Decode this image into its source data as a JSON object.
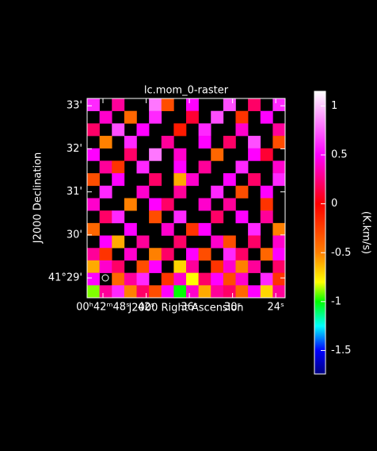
{
  "chart_data": {
    "type": "heatmap",
    "title": "lc.mom_0-raster",
    "xlabel": "J2000 Right Ascension",
    "ylabel": "J2000 Declination",
    "colorbar_label": "(K.km/s)",
    "xlim": [
      50.2,
      22.7
    ],
    "ylim": [
      28.54,
      33.17
    ],
    "clim": [
      -1.74,
      1.15
    ],
    "xticks": [
      {
        "value": 48,
        "label": "00ʰ42ᵐ48ˢ"
      },
      {
        "value": 42,
        "label": "42ˢ"
      },
      {
        "value": 36,
        "label": "36ˢ"
      },
      {
        "value": 30,
        "label": "30ˢ"
      },
      {
        "value": 24,
        "label": "24ˢ"
      }
    ],
    "yticks": [
      {
        "value": 33,
        "label": "33'"
      },
      {
        "value": 32,
        "label": "32'"
      },
      {
        "value": 31,
        "label": "31'"
      },
      {
        "value": 30,
        "label": "30'"
      },
      {
        "value": 29,
        "label": "41°29'"
      }
    ],
    "cticks": [
      {
        "value": 1,
        "label": "1"
      },
      0.5,
      0,
      -0.5,
      -1,
      -1.5
    ],
    "colormap": [
      [
        -1.74,
        "#000080"
      ],
      [
        -1.5,
        "#0000ff"
      ],
      [
        -1.25,
        "#00ffff"
      ],
      [
        -1.0,
        "#00ff00"
      ],
      [
        -0.8,
        "#ffff00"
      ],
      [
        -0.5,
        "#ff8000"
      ],
      [
        0,
        "#ff0000"
      ],
      [
        0.5,
        "#ff00ff"
      ],
      [
        1.15,
        "#ffffff"
      ]
    ],
    "z": [
      [
        0.6,
        null,
        0.3,
        null,
        null,
        0.8,
        -0.3,
        null,
        0.5,
        null,
        null,
        0.7,
        null,
        0.2,
        null,
        0.6
      ],
      [
        null,
        0.4,
        null,
        -0.4,
        null,
        0.6,
        null,
        null,
        0.1,
        null,
        0.7,
        null,
        -0.2,
        null,
        0.5,
        null
      ],
      [
        0.2,
        null,
        0.7,
        null,
        0.5,
        null,
        null,
        -0.1,
        null,
        0.6,
        null,
        null,
        0.4,
        null,
        null,
        0.3
      ],
      [
        null,
        -0.5,
        null,
        0.6,
        null,
        null,
        0.3,
        null,
        null,
        0.5,
        null,
        0.2,
        null,
        0.7,
        null,
        -0.3
      ],
      [
        0.5,
        null,
        null,
        0.2,
        null,
        0.8,
        null,
        0.4,
        null,
        null,
        -0.4,
        null,
        null,
        0.5,
        0.1,
        null
      ],
      [
        null,
        0.3,
        -0.2,
        null,
        0.6,
        null,
        null,
        0.5,
        null,
        0.3,
        null,
        null,
        0.6,
        null,
        null,
        0.4
      ],
      [
        -0.3,
        null,
        0.5,
        null,
        null,
        0.2,
        null,
        -0.6,
        0.4,
        null,
        null,
        0.5,
        null,
        0.2,
        null,
        0.6
      ],
      [
        null,
        0.6,
        null,
        null,
        0.4,
        null,
        null,
        0.3,
        null,
        null,
        0.6,
        null,
        -0.3,
        null,
        0.5,
        null
      ],
      [
        0.4,
        null,
        null,
        -0.5,
        null,
        0.5,
        0.2,
        null,
        null,
        0.4,
        null,
        0.3,
        null,
        null,
        -0.2,
        null
      ],
      [
        null,
        0.2,
        0.6,
        null,
        null,
        -0.3,
        null,
        0.6,
        null,
        null,
        0.2,
        null,
        0.5,
        null,
        0.3,
        null
      ],
      [
        -0.4,
        null,
        null,
        0.5,
        null,
        null,
        0.4,
        null,
        -0.2,
        0.5,
        null,
        null,
        null,
        0.6,
        null,
        -0.5
      ],
      [
        null,
        0.5,
        -0.6,
        null,
        0.3,
        null,
        null,
        0.2,
        null,
        null,
        0.4,
        -0.3,
        null,
        0.2,
        null,
        0.4
      ],
      [
        0.3,
        -0.2,
        null,
        0.4,
        null,
        -0.5,
        0.2,
        null,
        0.5,
        -0.3,
        null,
        0.6,
        0.2,
        null,
        -0.4,
        0.5
      ],
      [
        -0.6,
        0.4,
        0.2,
        null,
        -0.3,
        0.5,
        null,
        -0.7,
        0.3,
        null,
        -0.2,
        0.4,
        -0.5,
        0.3,
        null,
        0.2
      ],
      [
        0.5,
        null,
        -0.4,
        0.3,
        0.6,
        null,
        -0.2,
        0.4,
        -0.8,
        0.2,
        0.5,
        -0.3,
        0.4,
        null,
        0.6,
        -0.2
      ],
      [
        -0.9,
        0.3,
        0.6,
        -0.5,
        0.2,
        -0.3,
        0.5,
        -1,
        0.4,
        -0.6,
        0.3,
        0.2,
        -0.4,
        0.5,
        -0.7,
        0.3
      ]
    ]
  }
}
